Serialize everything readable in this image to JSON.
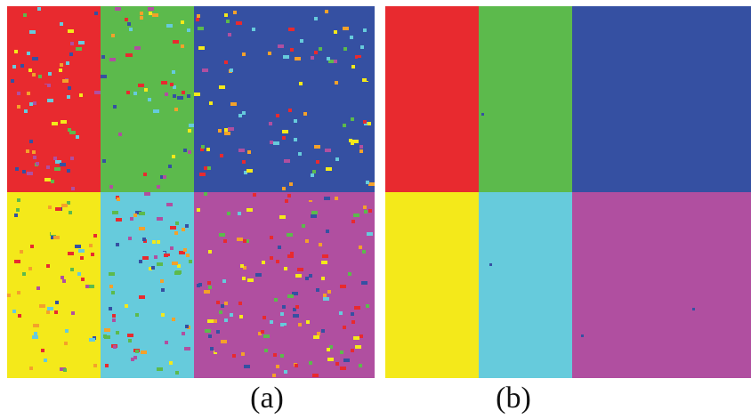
{
  "colors": {
    "red": "#e82a2f",
    "green": "#5cba4c",
    "blue": "#3550a2",
    "yellow": "#f4e91a",
    "cyan": "#66cbdc",
    "magenta": "#b04fa0",
    "orange": "#f4a12a"
  },
  "panels": [
    {
      "label": "(a)",
      "noisy": true,
      "regions": [
        "red",
        "green",
        "blue",
        "yellow",
        "cyan",
        "magenta"
      ]
    },
    {
      "label": "(b)",
      "noisy": false,
      "regions": [
        "red",
        "green",
        "blue",
        "yellow",
        "cyan",
        "magenta"
      ]
    }
  ]
}
